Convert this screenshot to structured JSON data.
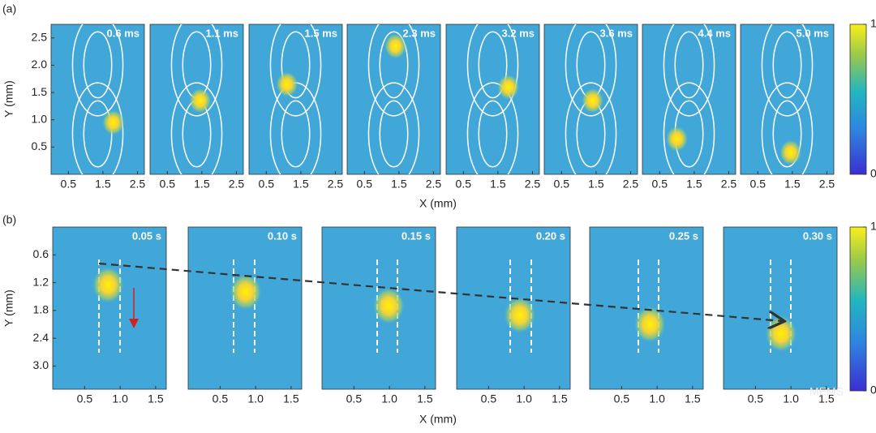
{
  "chart_data": [
    {
      "type": "heatmap-frames",
      "panel_label": "(a)",
      "x_label": "X (mm)",
      "y_label": "Y (mm)",
      "xlim": [
        0,
        2.7
      ],
      "ylim": [
        0,
        2.75
      ],
      "xticks": [
        0.5,
        1.5,
        2.5
      ],
      "yticks": [
        0.5,
        {
          "value": 1,
          "label": "1.0"
        },
        1.5,
        {
          "value": 2,
          "label": "2.0"
        },
        2.5
      ],
      "colorbar_ticks": [
        0,
        1
      ],
      "frames": [
        {
          "time": "0.6 ms",
          "spot_x": 1.8,
          "spot_y": 0.95
        },
        {
          "time": "1.1 ms",
          "spot_x": 1.45,
          "spot_y": 1.35
        },
        {
          "time": "1.5 ms",
          "spot_x": 1.1,
          "spot_y": 1.65
        },
        {
          "time": "2.3 ms",
          "spot_x": 1.4,
          "spot_y": 2.35
        },
        {
          "time": "3.2 ms",
          "spot_x": 1.8,
          "spot_y": 1.6
        },
        {
          "time": "3.6 ms",
          "spot_x": 1.4,
          "spot_y": 1.35
        },
        {
          "time": "4.4 ms",
          "spot_x": 1.0,
          "spot_y": 0.65
        },
        {
          "time": "5.0 ms",
          "spot_x": 1.45,
          "spot_y": 0.4
        }
      ]
    },
    {
      "type": "heatmap-frames",
      "panel_label": "(b)",
      "x_label": "X (mm)",
      "y_label": "Y (mm)",
      "xlim": [
        0.05,
        1.65
      ],
      "ylim": [
        3.5,
        0
      ],
      "y_inverted": true,
      "xticks": [
        0.5,
        {
          "value": 1,
          "label": "1.0"
        },
        1.5
      ],
      "yticks": [
        0.6,
        1.2,
        1.8,
        2.4,
        {
          "value": 3,
          "label": "3.0"
        }
      ],
      "colorbar_ticks": [
        0,
        1
      ],
      "frames": [
        {
          "time": "0.05 s",
          "spot_x": 0.83,
          "spot_y": 1.25
        },
        {
          "time": "0.10 s",
          "spot_x": 0.86,
          "spot_y": 1.4
        },
        {
          "time": "0.15 s",
          "spot_x": 0.99,
          "spot_y": 1.7
        },
        {
          "time": "0.20 s",
          "spot_x": 0.94,
          "spot_y": 1.9
        },
        {
          "time": "0.25 s",
          "spot_x": 0.9,
          "spot_y": 2.1
        },
        {
          "time": "0.30 s",
          "spot_x": 0.86,
          "spot_y": 2.3
        }
      ]
    }
  ],
  "watermark": "MEMS"
}
